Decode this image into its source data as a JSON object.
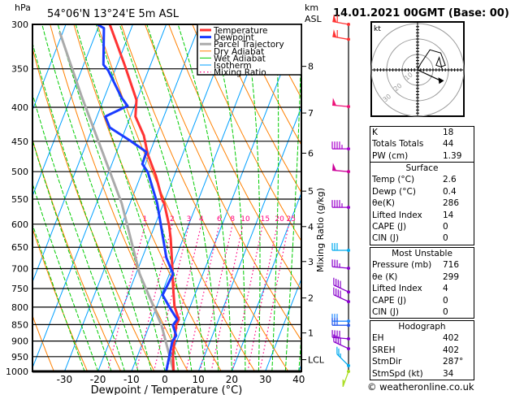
{
  "header": {
    "location": "54°06'N  13°24'E  5m  ASL",
    "datetime": "14.01.2021  00GMT  (Base: 00)",
    "left_unit": "hPa",
    "right_unit_1": "km",
    "right_unit_2": "ASL"
  },
  "chart_data": {
    "type": "skew-t",
    "xlabel": "Dewpoint / Temperature (°C)",
    "ylabel_left": "hPa",
    "ylabel_right": "Mixing Ratio (g/kg)",
    "xlim": [
      -40,
      40
    ],
    "ylim": [
      1000,
      300
    ],
    "x_ticks": [
      "-30",
      "-20",
      "-10",
      "0",
      "10",
      "20",
      "30",
      "40"
    ],
    "x_tick_values": [
      -30,
      -20,
      -10,
      0,
      10,
      20,
      30,
      40
    ],
    "pressure_ticks": [
      300,
      350,
      400,
      450,
      500,
      550,
      600,
      650,
      700,
      750,
      800,
      850,
      900,
      950,
      1000
    ],
    "height_ticks": [
      {
        "label": "8",
        "p": 347
      },
      {
        "label": "7",
        "p": 408
      },
      {
        "label": "6",
        "p": 469
      },
      {
        "label": "5",
        "p": 535
      },
      {
        "label": "4",
        "p": 605
      },
      {
        "label": "3",
        "p": 683
      },
      {
        "label": "2",
        "p": 775
      },
      {
        "label": "1",
        "p": 875
      },
      {
        "label": "LCL",
        "p": 960
      }
    ],
    "mixing_ratio_labels": [
      "1",
      "2",
      "3",
      "4",
      "6",
      "8",
      "10",
      "15",
      "20",
      "25"
    ],
    "mixing_ratio_values": [
      1,
      2,
      3,
      4,
      6,
      8,
      10,
      15,
      20,
      25
    ],
    "legend": [
      "Temperature",
      "Dewpoint",
      "Parcel Trajectory",
      "Dry Adiabat",
      "Wet Adiabat",
      "Isotherm",
      "Mixing Ratio"
    ],
    "legend_placement": "top-right",
    "colors": {
      "temperature": "#ff3333",
      "dewpoint": "#1a3cff",
      "parcel": "#aaaaaa",
      "dry_adiabat": "#ff8000",
      "wet_adiabat": "#00cc00",
      "isotherm": "#00a0ff",
      "mixing_ratio": "#ff0080"
    },
    "temperature": [
      {
        "p": 1000,
        "t": 2.6
      },
      {
        "p": 945,
        "t": 0.5
      },
      {
        "p": 893,
        "t": -0.9
      },
      {
        "p": 852,
        "t": -2.0
      },
      {
        "p": 835,
        "t": -1.9
      },
      {
        "p": 798,
        "t": -4.7
      },
      {
        "p": 740,
        "t": -7.7
      },
      {
        "p": 699,
        "t": -9.8
      },
      {
        "p": 630,
        "t": -13.8
      },
      {
        "p": 602,
        "t": -15.8
      },
      {
        "p": 558,
        "t": -19.8
      },
      {
        "p": 553,
        "t": -20.6
      },
      {
        "p": 508,
        "t": -25.4
      },
      {
        "p": 471,
        "t": -30.4
      },
      {
        "p": 441,
        "t": -33.8
      },
      {
        "p": 413,
        "t": -38.5
      },
      {
        "p": 390,
        "t": -40.1
      },
      {
        "p": 345,
        "t": -47.8
      },
      {
        "p": 300,
        "t": -56.9
      }
    ],
    "dewpoint": [
      {
        "p": 1000,
        "t": 0.4
      },
      {
        "p": 901,
        "t": -1.3
      },
      {
        "p": 883,
        "t": -0.8
      },
      {
        "p": 852,
        "t": -3.0
      },
      {
        "p": 835,
        "t": -2.4
      },
      {
        "p": 805,
        "t": -5.6
      },
      {
        "p": 767,
        "t": -9.6
      },
      {
        "p": 713,
        "t": -8.9
      },
      {
        "p": 674,
        "t": -12.8
      },
      {
        "p": 558,
        "t": -21.9
      },
      {
        "p": 501,
        "t": -28.3
      },
      {
        "p": 487,
        "t": -30.9
      },
      {
        "p": 467,
        "t": -31.1
      },
      {
        "p": 449,
        "t": -37.3
      },
      {
        "p": 429,
        "t": -44.9
      },
      {
        "p": 413,
        "t": -47.5
      },
      {
        "p": 398,
        "t": -42.1
      },
      {
        "p": 387,
        "t": -44.8
      },
      {
        "p": 352,
        "t": -52.0
      },
      {
        "p": 345,
        "t": -54.1
      },
      {
        "p": 304,
        "t": -58.2
      },
      {
        "p": 300,
        "t": -60.6
      }
    ],
    "parcel": [
      {
        "p": 1000,
        "t": 2.6
      },
      {
        "p": 852,
        "t": -6.4
      },
      {
        "p": 713,
        "t": -18.9
      },
      {
        "p": 558,
        "t": -32.5
      },
      {
        "p": 384,
        "t": -57.1
      },
      {
        "p": 308,
        "t": -71.0
      }
    ],
    "wind_barbs": [
      {
        "p": 300,
        "dir": 280,
        "kt": 60,
        "color": "#ff3333"
      },
      {
        "p": 316,
        "dir": 280,
        "kt": 60,
        "color": "#ff3333"
      },
      {
        "p": 399,
        "dir": 275,
        "kt": 50,
        "color": "#ee1177"
      },
      {
        "p": 462,
        "dir": 270,
        "kt": 45,
        "color": "#aa00cc"
      },
      {
        "p": 500,
        "dir": 275,
        "kt": 50,
        "color": "#cc0099"
      },
      {
        "p": 566,
        "dir": 270,
        "kt": 45,
        "color": "#9900cc"
      },
      {
        "p": 657,
        "dir": 270,
        "kt": 30,
        "color": "#00aaee"
      },
      {
        "p": 699,
        "dir": 275,
        "kt": 35,
        "color": "#8800cc"
      },
      {
        "p": 759,
        "dir": 295,
        "kt": 40,
        "color": "#8800cc"
      },
      {
        "p": 785,
        "dir": 295,
        "kt": 40,
        "color": "#8800cc"
      },
      {
        "p": 840,
        "dir": 270,
        "kt": 30,
        "color": "#2288ff"
      },
      {
        "p": 852,
        "dir": 270,
        "kt": 30,
        "color": "#2255ee"
      },
      {
        "p": 893,
        "dir": 275,
        "kt": 40,
        "color": "#8800cc"
      },
      {
        "p": 924,
        "dir": 295,
        "kt": 40,
        "color": "#8800cc"
      },
      {
        "p": 980,
        "dir": 315,
        "kt": 25,
        "color": "#00aaee"
      },
      {
        "p": 1000,
        "dir": 200,
        "kt": 15,
        "color": "#aadd22"
      }
    ]
  },
  "hodograph": {
    "unit": "kt",
    "ring_labels": [
      "10",
      "20",
      "30"
    ],
    "trace_kt": [
      [
        0,
        0
      ],
      [
        2,
        -4
      ],
      [
        8,
        -13
      ],
      [
        15,
        -11
      ],
      [
        18,
        -3
      ],
      [
        15,
        -2
      ],
      [
        12,
        -3
      ],
      [
        14,
        -8
      ],
      [
        16,
        0
      ]
    ],
    "storm_motion_kt": [
      [
        0,
        0
      ],
      [
        15,
        7
      ]
    ]
  },
  "indices": {
    "rows": [
      {
        "label": "K",
        "value": "18"
      },
      {
        "label": "Totals Totals",
        "value": "44"
      },
      {
        "label": "PW (cm)",
        "value": "1.39"
      }
    ]
  },
  "surface": {
    "title": "Surface",
    "rows": [
      {
        "label": "Temp (°C)",
        "value": "2.6"
      },
      {
        "label": "Dewp (°C)",
        "value": "0.4"
      },
      {
        "label": "θe(K)",
        "value": "286"
      },
      {
        "label": "Lifted Index",
        "value": "14"
      },
      {
        "label": "CAPE (J)",
        "value": "0"
      },
      {
        "label": "CIN (J)",
        "value": "0"
      }
    ]
  },
  "most_unstable": {
    "title": "Most Unstable",
    "rows": [
      {
        "label": "Pressure (mb)",
        "value": "716"
      },
      {
        "label": "θe (K)",
        "value": "299"
      },
      {
        "label": "Lifted Index",
        "value": "4"
      },
      {
        "label": "CAPE (J)",
        "value": "0"
      },
      {
        "label": "CIN (J)",
        "value": "0"
      }
    ]
  },
  "hodo_table": {
    "title": "Hodograph",
    "rows": [
      {
        "label": "EH",
        "value": "402"
      },
      {
        "label": "SREH",
        "value": "402"
      },
      {
        "label": "StmDir",
        "value": "287°"
      },
      {
        "label": "StmSpd (kt)",
        "value": "34"
      }
    ]
  },
  "footer": {
    "copyright": "© weatheronline.co.uk"
  }
}
